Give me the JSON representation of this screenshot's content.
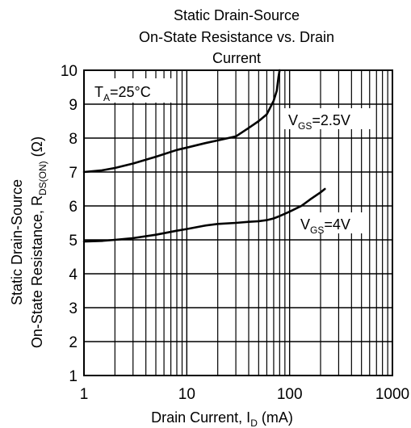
{
  "chart_data": {
    "type": "line",
    "title_lines": [
      "Static Drain-Source",
      "On-State Resistance vs. Drain",
      "Current"
    ],
    "xlabel": {
      "main": "Drain Current, I",
      "sub": "D",
      "tail": " (mA)"
    },
    "ylabel": {
      "line1": "Static Drain-Source",
      "line2_main": "On-State Resistance,  R",
      "line2_sub": "DS(ON)",
      "line2_tail": " (Ω)"
    },
    "x_scale": "log",
    "xlim": [
      1,
      1000
    ],
    "ylim": [
      1,
      10
    ],
    "x_ticks": [
      1,
      10,
      100,
      1000
    ],
    "x_tick_labels": [
      "1",
      "10",
      "100",
      "1000"
    ],
    "y_ticks": [
      1,
      2,
      3,
      4,
      5,
      6,
      7,
      8,
      9,
      10
    ],
    "y_tick_labels": [
      "1",
      "2",
      "3",
      "4",
      "5",
      "6",
      "7",
      "8",
      "9",
      "10"
    ],
    "grid": true,
    "series": [
      {
        "name": "VGS=2.5V",
        "label": {
          "main": "V",
          "sub": "GS",
          "tail": "=2.5V"
        },
        "x": [
          1,
          1.5,
          2,
          3,
          5,
          8,
          10,
          15,
          20,
          30,
          40,
          50,
          60,
          70,
          75,
          78,
          80
        ],
        "y": [
          7.0,
          7.05,
          7.12,
          7.25,
          7.45,
          7.65,
          7.72,
          7.85,
          7.93,
          8.05,
          8.3,
          8.5,
          8.7,
          9.1,
          9.4,
          9.8,
          10.0
        ]
      },
      {
        "name": "VGS=4V",
        "label": {
          "main": "V",
          "sub": "GS",
          "tail": "=4V"
        },
        "x": [
          1,
          1.5,
          2,
          3,
          5,
          8,
          10,
          15,
          20,
          30,
          40,
          50,
          60,
          70,
          80,
          100,
          130,
          160,
          200,
          220
        ],
        "y": [
          4.95,
          4.97,
          5.0,
          5.05,
          5.15,
          5.27,
          5.32,
          5.42,
          5.47,
          5.5,
          5.53,
          5.55,
          5.58,
          5.63,
          5.7,
          5.83,
          6.0,
          6.2,
          6.4,
          6.5
        ]
      }
    ],
    "annotation": {
      "main": "T",
      "sub": "A",
      "tail": "=25°C"
    },
    "line_color": "#000000",
    "grid_color": "#000000"
  }
}
